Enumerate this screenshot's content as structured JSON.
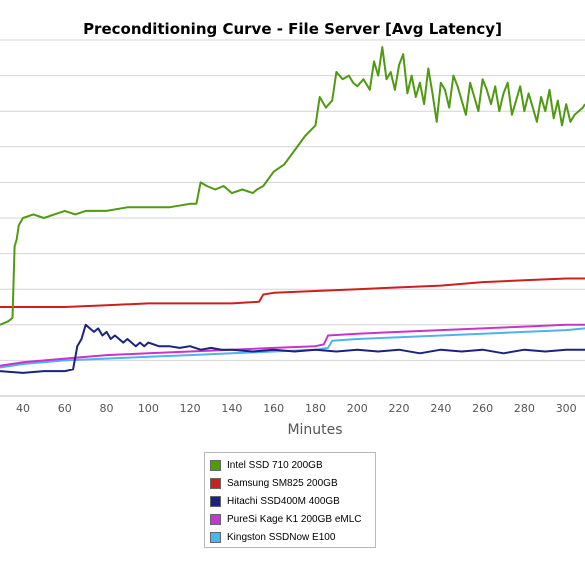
{
  "chart_data": {
    "type": "line",
    "title": "Preconditioning Curve - File Server [Avg Latency]",
    "xlabel": "Minutes",
    "ylabel": "",
    "x_ticks": [
      40,
      60,
      80,
      100,
      120,
      140,
      160,
      180,
      200,
      220,
      240,
      260,
      280,
      300
    ],
    "xlim": [
      29,
      309
    ],
    "ylim": [
      0,
      10
    ],
    "grid": "horizontal",
    "legend": "bottom-center",
    "series": [
      {
        "name": "Intel SSD 710 200GB",
        "color": "#4f9a12",
        "points": [
          [
            29,
            2.0
          ],
          [
            33,
            2.1
          ],
          [
            35,
            2.2
          ],
          [
            36,
            4.2
          ],
          [
            37,
            4.4
          ],
          [
            38,
            4.8
          ],
          [
            40,
            5.0
          ],
          [
            45,
            5.1
          ],
          [
            50,
            5.0
          ],
          [
            55,
            5.1
          ],
          [
            60,
            5.2
          ],
          [
            65,
            5.1
          ],
          [
            70,
            5.2
          ],
          [
            80,
            5.2
          ],
          [
            90,
            5.3
          ],
          [
            100,
            5.3
          ],
          [
            110,
            5.3
          ],
          [
            120,
            5.4
          ],
          [
            123,
            5.4
          ],
          [
            125,
            6.0
          ],
          [
            128,
            5.9
          ],
          [
            132,
            5.8
          ],
          [
            136,
            5.9
          ],
          [
            140,
            5.7
          ],
          [
            145,
            5.8
          ],
          [
            150,
            5.7
          ],
          [
            152,
            5.8
          ],
          [
            155,
            5.9
          ],
          [
            160,
            6.3
          ],
          [
            165,
            6.5
          ],
          [
            170,
            6.9
          ],
          [
            175,
            7.3
          ],
          [
            180,
            7.6
          ],
          [
            182,
            8.4
          ],
          [
            185,
            8.1
          ],
          [
            188,
            8.3
          ],
          [
            190,
            9.1
          ],
          [
            193,
            8.9
          ],
          [
            196,
            9.0
          ],
          [
            198,
            8.8
          ],
          [
            200,
            8.7
          ],
          [
            203,
            8.9
          ],
          [
            206,
            8.6
          ],
          [
            208,
            9.4
          ],
          [
            210,
            9.0
          ],
          [
            212,
            9.8
          ],
          [
            214,
            8.9
          ],
          [
            216,
            9.1
          ],
          [
            218,
            8.6
          ],
          [
            220,
            9.3
          ],
          [
            222,
            9.6
          ],
          [
            224,
            8.5
          ],
          [
            226,
            9.0
          ],
          [
            228,
            8.4
          ],
          [
            230,
            8.8
          ],
          [
            232,
            8.2
          ],
          [
            234,
            9.2
          ],
          [
            236,
            8.5
          ],
          [
            238,
            7.7
          ],
          [
            240,
            8.8
          ],
          [
            242,
            8.6
          ],
          [
            244,
            8.1
          ],
          [
            246,
            9.0
          ],
          [
            248,
            8.7
          ],
          [
            250,
            8.3
          ],
          [
            252,
            7.9
          ],
          [
            254,
            8.8
          ],
          [
            256,
            8.4
          ],
          [
            258,
            8.0
          ],
          [
            260,
            8.9
          ],
          [
            262,
            8.6
          ],
          [
            264,
            8.2
          ],
          [
            266,
            8.7
          ],
          [
            268,
            8.0
          ],
          [
            270,
            8.5
          ],
          [
            272,
            8.8
          ],
          [
            274,
            7.9
          ],
          [
            276,
            8.3
          ],
          [
            278,
            8.7
          ],
          [
            280,
            8.0
          ],
          [
            282,
            8.5
          ],
          [
            284,
            8.1
          ],
          [
            286,
            7.7
          ],
          [
            288,
            8.4
          ],
          [
            290,
            8.0
          ],
          [
            292,
            8.6
          ],
          [
            294,
            7.8
          ],
          [
            296,
            8.3
          ],
          [
            298,
            7.6
          ],
          [
            300,
            8.2
          ],
          [
            302,
            7.7
          ],
          [
            304,
            7.9
          ],
          [
            306,
            8.0
          ],
          [
            308,
            8.1
          ],
          [
            309,
            8.2
          ]
        ]
      },
      {
        "name": "Samsung SM825 200GB",
        "color": "#cc2020",
        "points": [
          [
            29,
            2.5
          ],
          [
            40,
            2.5
          ],
          [
            60,
            2.5
          ],
          [
            80,
            2.55
          ],
          [
            100,
            2.6
          ],
          [
            120,
            2.6
          ],
          [
            140,
            2.6
          ],
          [
            153,
            2.65
          ],
          [
            155,
            2.85
          ],
          [
            160,
            2.9
          ],
          [
            180,
            2.95
          ],
          [
            200,
            3.0
          ],
          [
            220,
            3.05
          ],
          [
            240,
            3.1
          ],
          [
            260,
            3.2
          ],
          [
            280,
            3.25
          ],
          [
            300,
            3.3
          ],
          [
            309,
            3.3
          ]
        ]
      },
      {
        "name": "Hitachi SSD400M 400GB",
        "color": "#1a237e",
        "points": [
          [
            29,
            0.7
          ],
          [
            40,
            0.65
          ],
          [
            50,
            0.7
          ],
          [
            60,
            0.7
          ],
          [
            64,
            0.75
          ],
          [
            66,
            1.4
          ],
          [
            68,
            1.6
          ],
          [
            70,
            2.0
          ],
          [
            72,
            1.9
          ],
          [
            74,
            1.8
          ],
          [
            76,
            1.9
          ],
          [
            78,
            1.7
          ],
          [
            80,
            1.8
          ],
          [
            82,
            1.6
          ],
          [
            84,
            1.7
          ],
          [
            86,
            1.6
          ],
          [
            88,
            1.5
          ],
          [
            90,
            1.6
          ],
          [
            92,
            1.5
          ],
          [
            94,
            1.4
          ],
          [
            96,
            1.5
          ],
          [
            98,
            1.4
          ],
          [
            100,
            1.5
          ],
          [
            105,
            1.4
          ],
          [
            110,
            1.4
          ],
          [
            115,
            1.35
          ],
          [
            120,
            1.4
          ],
          [
            125,
            1.3
          ],
          [
            130,
            1.35
          ],
          [
            135,
            1.3
          ],
          [
            140,
            1.3
          ],
          [
            150,
            1.25
          ],
          [
            160,
            1.3
          ],
          [
            170,
            1.25
          ],
          [
            180,
            1.3
          ],
          [
            190,
            1.25
          ],
          [
            200,
            1.3
          ],
          [
            210,
            1.25
          ],
          [
            220,
            1.3
          ],
          [
            230,
            1.2
          ],
          [
            240,
            1.3
          ],
          [
            250,
            1.25
          ],
          [
            260,
            1.3
          ],
          [
            270,
            1.2
          ],
          [
            280,
            1.3
          ],
          [
            290,
            1.25
          ],
          [
            300,
            1.3
          ],
          [
            309,
            1.3
          ]
        ]
      },
      {
        "name": "PureSi Kage K1 200GB eMLC",
        "color": "#cc33cc",
        "points": [
          [
            29,
            0.85
          ],
          [
            40,
            0.95
          ],
          [
            60,
            1.05
          ],
          [
            80,
            1.15
          ],
          [
            100,
            1.2
          ],
          [
            120,
            1.25
          ],
          [
            140,
            1.3
          ],
          [
            160,
            1.35
          ],
          [
            180,
            1.4
          ],
          [
            184,
            1.45
          ],
          [
            186,
            1.7
          ],
          [
            200,
            1.75
          ],
          [
            220,
            1.8
          ],
          [
            240,
            1.85
          ],
          [
            260,
            1.9
          ],
          [
            280,
            1.95
          ],
          [
            300,
            2.0
          ],
          [
            309,
            2.0
          ]
        ]
      },
      {
        "name": "Kingston SSDNow E100",
        "color": "#4fb3f0",
        "points": [
          [
            29,
            0.8
          ],
          [
            40,
            0.9
          ],
          [
            60,
            1.0
          ],
          [
            80,
            1.05
          ],
          [
            100,
            1.1
          ],
          [
            120,
            1.15
          ],
          [
            140,
            1.2
          ],
          [
            160,
            1.25
          ],
          [
            180,
            1.3
          ],
          [
            186,
            1.35
          ],
          [
            188,
            1.55
          ],
          [
            200,
            1.6
          ],
          [
            220,
            1.65
          ],
          [
            240,
            1.7
          ],
          [
            260,
            1.75
          ],
          [
            280,
            1.8
          ],
          [
            300,
            1.85
          ],
          [
            309,
            1.9
          ]
        ]
      }
    ]
  }
}
